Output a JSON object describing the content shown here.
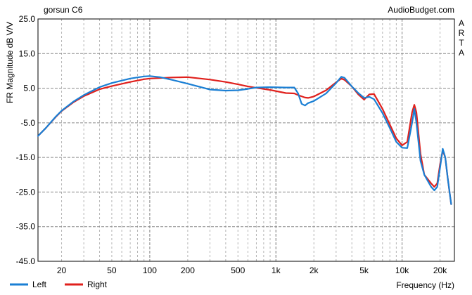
{
  "chart_data": {
    "type": "line",
    "title": "gorsun C6",
    "source_label": "AudioBudget.com",
    "side_label": "ARTA",
    "xlabel": "Frequency (Hz)",
    "ylabel": "FR Magnitude dB V/V",
    "x_scale": "log",
    "xlim": [
      13,
      26000
    ],
    "ylim": [
      -45,
      25
    ],
    "grid": true,
    "legend_position": "bottom-left",
    "y_ticks": [
      {
        "value": 25,
        "label": "25.0"
      },
      {
        "value": 15,
        "label": "15.0"
      },
      {
        "value": 5,
        "label": "5.0"
      },
      {
        "value": -5,
        "label": "-5.0"
      },
      {
        "value": -15,
        "label": "-15.0"
      },
      {
        "value": -25,
        "label": "-25.0"
      },
      {
        "value": -35,
        "label": "-35.0"
      },
      {
        "value": -45,
        "label": "-45.0"
      }
    ],
    "x_ticks": [
      {
        "value": 20,
        "label": "20"
      },
      {
        "value": 50,
        "label": "50"
      },
      {
        "value": 100,
        "label": "100"
      },
      {
        "value": 200,
        "label": "200"
      },
      {
        "value": 500,
        "label": "500"
      },
      {
        "value": 1000,
        "label": "1k"
      },
      {
        "value": 2000,
        "label": "2k"
      },
      {
        "value": 5000,
        "label": "5k"
      },
      {
        "value": 10000,
        "label": "10k"
      },
      {
        "value": 20000,
        "label": "20k"
      }
    ],
    "series": [
      {
        "name": "Left",
        "color": "#1a7fd4",
        "points": [
          [
            13,
            -8.8
          ],
          [
            15,
            -6.5
          ],
          [
            18,
            -3.2
          ],
          [
            20,
            -1.5
          ],
          [
            25,
            1.2
          ],
          [
            30,
            3.0
          ],
          [
            40,
            5.3
          ],
          [
            50,
            6.5
          ],
          [
            70,
            7.8
          ],
          [
            90,
            8.4
          ],
          [
            100,
            8.5
          ],
          [
            120,
            8.2
          ],
          [
            150,
            7.4
          ],
          [
            200,
            6.3
          ],
          [
            300,
            4.6
          ],
          [
            400,
            4.3
          ],
          [
            500,
            4.4
          ],
          [
            600,
            4.8
          ],
          [
            700,
            5.2
          ],
          [
            900,
            5.3
          ],
          [
            1200,
            5.2
          ],
          [
            1400,
            5.2
          ],
          [
            1500,
            3.5
          ],
          [
            1600,
            0.5
          ],
          [
            1700,
            0.0
          ],
          [
            1800,
            0.7
          ],
          [
            2000,
            1.3
          ],
          [
            2500,
            3.5
          ],
          [
            3000,
            6.5
          ],
          [
            3300,
            8.3
          ],
          [
            3500,
            8.0
          ],
          [
            4000,
            5.5
          ],
          [
            4500,
            3.6
          ],
          [
            5000,
            2.2
          ],
          [
            5500,
            2.5
          ],
          [
            6000,
            1.8
          ],
          [
            7000,
            -2.2
          ],
          [
            8000,
            -6.5
          ],
          [
            9000,
            -10.5
          ],
          [
            10000,
            -12.2
          ],
          [
            11000,
            -12.3
          ],
          [
            12000,
            -5.0
          ],
          [
            12500,
            -1.0
          ],
          [
            13000,
            -5.0
          ],
          [
            14000,
            -16.0
          ],
          [
            15000,
            -20.0
          ],
          [
            17000,
            -23.5
          ],
          [
            18000,
            -24.5
          ],
          [
            19000,
            -23.5
          ],
          [
            20000,
            -18.0
          ],
          [
            21000,
            -12.5
          ],
          [
            22000,
            -15.0
          ],
          [
            23000,
            -21.0
          ],
          [
            24500,
            -28.5
          ]
        ]
      },
      {
        "name": "Right",
        "color": "#e0201c",
        "points": [
          [
            13,
            -8.8
          ],
          [
            15,
            -6.5
          ],
          [
            18,
            -3.3
          ],
          [
            20,
            -1.6
          ],
          [
            25,
            1.0
          ],
          [
            30,
            2.7
          ],
          [
            40,
            4.7
          ],
          [
            50,
            5.6
          ],
          [
            70,
            6.8
          ],
          [
            90,
            7.6
          ],
          [
            100,
            7.8
          ],
          [
            150,
            8.1
          ],
          [
            200,
            8.2
          ],
          [
            300,
            7.5
          ],
          [
            400,
            6.8
          ],
          [
            500,
            6.1
          ],
          [
            600,
            5.5
          ],
          [
            700,
            5.1
          ],
          [
            900,
            4.5
          ],
          [
            1200,
            3.6
          ],
          [
            1400,
            3.5
          ],
          [
            1500,
            3.0
          ],
          [
            1700,
            2.3
          ],
          [
            1800,
            2.2
          ],
          [
            2000,
            2.6
          ],
          [
            2500,
            4.4
          ],
          [
            3000,
            6.7
          ],
          [
            3300,
            7.8
          ],
          [
            3500,
            7.4
          ],
          [
            4000,
            5.5
          ],
          [
            4500,
            3.2
          ],
          [
            5000,
            1.7
          ],
          [
            5500,
            3.2
          ],
          [
            6000,
            3.3
          ],
          [
            7000,
            -1.0
          ],
          [
            8000,
            -5.5
          ],
          [
            9000,
            -9.5
          ],
          [
            10000,
            -11.5
          ],
          [
            11000,
            -10.5
          ],
          [
            12000,
            -2.0
          ],
          [
            12500,
            0.2
          ],
          [
            13000,
            -2.0
          ],
          [
            14000,
            -14.0
          ],
          [
            15000,
            -20.0
          ],
          [
            17000,
            -22.5
          ],
          [
            18000,
            -23.5
          ],
          [
            19000,
            -22.5
          ],
          [
            20000,
            -17.0
          ],
          [
            21000,
            -13.0
          ],
          [
            22000,
            -15.0
          ],
          [
            23000,
            -21.0
          ],
          [
            24500,
            -28.5
          ]
        ]
      }
    ]
  }
}
